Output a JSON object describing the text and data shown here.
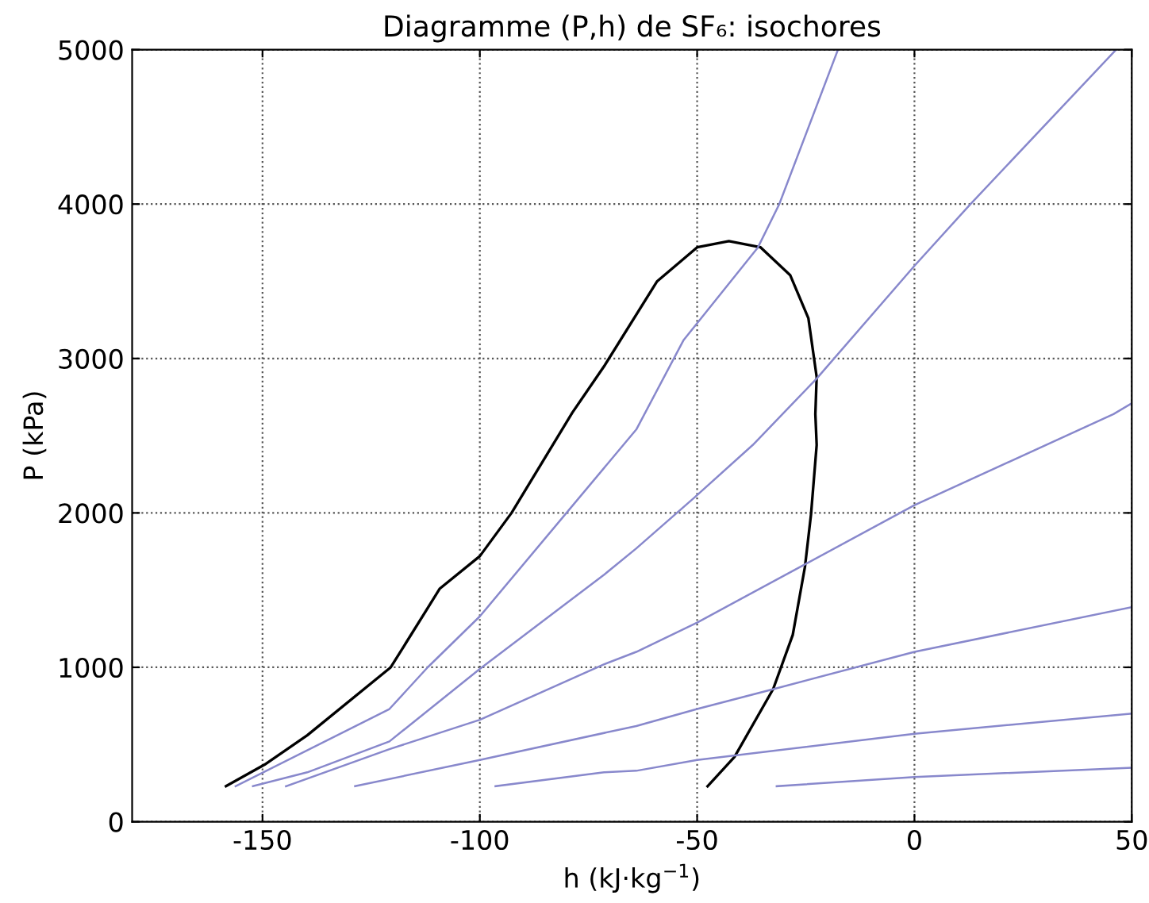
{
  "chart_data": {
    "type": "line",
    "title": "Diagramme (P,h) de SF₆: isochores",
    "xlabel": "h (kJ·kg$^{−1}$)",
    "ylabel": "P (kPa)",
    "xlim": [
      -180,
      50
    ],
    "ylim": [
      0,
      5000
    ],
    "xticks": [
      -150,
      -100,
      -50,
      0,
      50
    ],
    "yticks": [
      0,
      1000,
      2000,
      3000,
      4000,
      5000
    ],
    "grid": true,
    "marker": "none",
    "line_style": "solid",
    "series": [
      {
        "color": "#000000",
        "x": [
          -158.4,
          -149.5,
          -139.7,
          -120.5,
          -109.2,
          -100,
          -92.7,
          -78.7,
          -71.4,
          -59.2,
          -50,
          -42.7,
          -35.4,
          -28.6,
          -24.4,
          -22.5,
          -22.8,
          -22.5,
          -23.8,
          -25.2,
          -28.0,
          -32.5,
          -41.4,
          -47.6
        ],
        "values": [
          230,
          370,
          560,
          1000,
          1510,
          1720,
          2000,
          2650,
          2950,
          3500,
          3720,
          3760,
          3720,
          3540,
          3260,
          2880,
          2640,
          2440,
          1990,
          1650,
          1210,
          860,
          420,
          230
        ]
      },
      {
        "color": "#8888cc",
        "x": [
          -156.2,
          -120.8,
          -112,
          -100,
          -64,
          -53.1,
          -36,
          -31.1,
          -17.6
        ],
        "values": [
          230,
          730,
          1000,
          1330,
          2540,
          3120,
          3720,
          4000,
          5000
        ]
      },
      {
        "color": "#8888cc",
        "x": [
          -152.2,
          -139.7,
          -120.8,
          -100,
          -71.4,
          -64,
          -50.6,
          -37.2,
          -22.5,
          0,
          12.9,
          46.4
        ],
        "values": [
          230,
          320,
          520,
          990,
          1600,
          1770,
          2100,
          2440,
          2870,
          3600,
          4000,
          5000
        ]
      },
      {
        "color": "#8888cc",
        "x": [
          -144.6,
          -120.8,
          -100,
          -71.4,
          -64,
          -50,
          -25,
          0,
          45.8,
          50
        ],
        "values": [
          230,
          470,
          660,
          1020,
          1100,
          1290,
          1670,
          2050,
          2640,
          2710
        ]
      },
      {
        "color": "#8888cc",
        "x": [
          -128.7,
          -100,
          -64,
          -50,
          -32.3,
          0,
          50
        ],
        "values": [
          230,
          400,
          620,
          730,
          860,
          1100,
          1390
        ]
      },
      {
        "color": "#8888cc",
        "x": [
          -96.4,
          -71.4,
          -64,
          -50,
          0,
          50
        ],
        "values": [
          230,
          320,
          330,
          400,
          570,
          700
        ]
      },
      {
        "color": "#8888cc",
        "x": [
          -31.7,
          0,
          50
        ],
        "values": [
          230,
          290,
          350
        ]
      }
    ]
  }
}
